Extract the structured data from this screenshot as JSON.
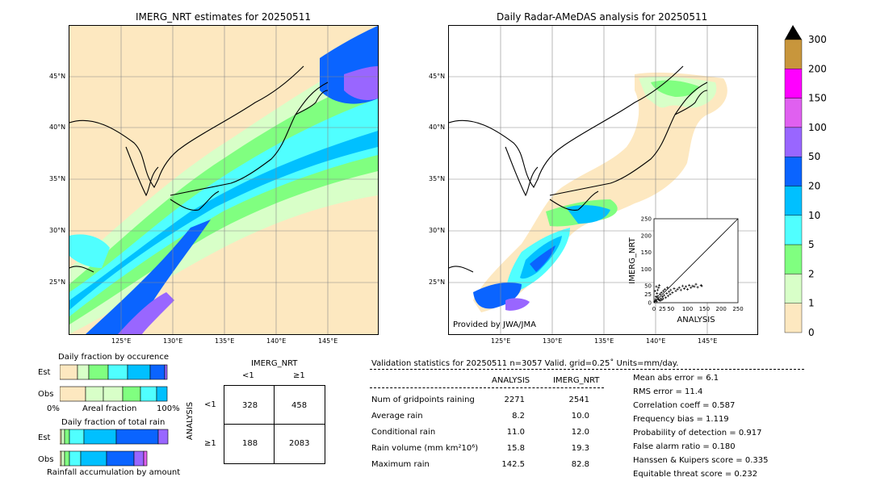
{
  "left_map": {
    "title": "IMERG_NRT estimates for 20250511",
    "lat_labels": [
      "45°N",
      "40°N",
      "35°N",
      "30°N",
      "25°N"
    ],
    "lon_labels": [
      "125°E",
      "130°E",
      "135°E",
      "140°E",
      "145°E"
    ]
  },
  "right_map": {
    "title": "Daily Radar-AMeDAS analysis for 20250511",
    "lat_labels": [
      "45°N",
      "40°N",
      "35°N",
      "30°N",
      "25°N"
    ],
    "lon_labels": [
      "125°E",
      "130°E",
      "135°E",
      "140°E",
      "145°E"
    ],
    "credit": "Provided by JWA/JMA"
  },
  "colorbar": {
    "labels": [
      "300",
      "200",
      "150",
      "100",
      "50",
      "20",
      "10",
      "5",
      "2",
      "1",
      "0"
    ],
    "colors": [
      "#c8963c",
      "#ff00ff",
      "#e060f0",
      "#9966ff",
      "#0a64ff",
      "#00c0ff",
      "#50ffff",
      "#80ff80",
      "#d8ffc8",
      "#fde8c0"
    ]
  },
  "occurrence": {
    "title": "Daily fraction by occurence",
    "row_labels": [
      "Est",
      "Obs"
    ],
    "axis_left": "0%",
    "axis_mid": "Areal fraction",
    "axis_right": "100%"
  },
  "total_rain": {
    "title": "Daily fraction of total rain",
    "row_labels": [
      "Est",
      "Obs"
    ],
    "axis_label": "Rainfall accumulation by amount"
  },
  "contingency": {
    "col_header": "IMERG_NRT",
    "col_labels": [
      "<1",
      "≥1"
    ],
    "row_header": "ANALYSIS",
    "row_labels": [
      "<1",
      "≥1"
    ],
    "cells": [
      [
        "328",
        "458"
      ],
      [
        "188",
        "2083"
      ]
    ]
  },
  "validation": {
    "header": "Validation statistics for 20250511  n=3057 Valid. grid=0.25˚ Units=mm/day.",
    "col_analysis": "ANALYSIS",
    "col_imerg": "IMERG_NRT",
    "rows": [
      {
        "label": "Num of gridpoints raining",
        "analysis": "2271",
        "imerg": "2541"
      },
      {
        "label": "Average rain",
        "analysis": "8.2",
        "imerg": "10.0"
      },
      {
        "label": "Conditional rain",
        "analysis": "11.0",
        "imerg": "12.0"
      },
      {
        "label": "Rain volume (mm km²10⁶)",
        "analysis": "15.8",
        "imerg": "19.3"
      },
      {
        "label": "Maximum rain",
        "analysis": "142.5",
        "imerg": "82.8"
      }
    ],
    "scores": [
      "Mean abs error =    6.1",
      "RMS error =   11.4",
      "Correlation coeff =  0.587",
      "Frequency bias =  1.119",
      "Probability of detection =  0.917",
      "False alarm ratio =  0.180",
      "Hanssen & Kuipers score =  0.335",
      "Equitable threat score =  0.232"
    ]
  },
  "chart_data": {
    "type": "scatter",
    "xlabel": "ANALYSIS",
    "ylabel": "IMERG_NRT",
    "xlim": [
      0,
      250
    ],
    "ylim": [
      0,
      250
    ],
    "x_ticks": [
      "0",
      "25",
      "50",
      "100",
      "150",
      "200",
      "250"
    ],
    "y_ticks": [
      "0",
      "25",
      "50",
      "100",
      "150",
      "200",
      "250"
    ],
    "diagonal": true,
    "points": [
      [
        2,
        3
      ],
      [
        4,
        6
      ],
      [
        5,
        10
      ],
      [
        8,
        4
      ],
      [
        10,
        15
      ],
      [
        12,
        20
      ],
      [
        15,
        8
      ],
      [
        18,
        25
      ],
      [
        20,
        12
      ],
      [
        22,
        30
      ],
      [
        25,
        18
      ],
      [
        28,
        35
      ],
      [
        30,
        22
      ],
      [
        32,
        40
      ],
      [
        35,
        15
      ],
      [
        38,
        28
      ],
      [
        40,
        45
      ],
      [
        42,
        20
      ],
      [
        45,
        33
      ],
      [
        48,
        25
      ],
      [
        50,
        38
      ],
      [
        55,
        30
      ],
      [
        60,
        42
      ],
      [
        65,
        35
      ],
      [
        70,
        40
      ],
      [
        75,
        45
      ],
      [
        80,
        38
      ],
      [
        85,
        50
      ],
      [
        90,
        42
      ],
      [
        95,
        48
      ],
      [
        100,
        40
      ],
      [
        105,
        52
      ],
      [
        110,
        45
      ],
      [
        115,
        50
      ],
      [
        120,
        48
      ],
      [
        125,
        55
      ],
      [
        130,
        46
      ],
      [
        140,
        52
      ],
      [
        142,
        50
      ],
      [
        6,
        18
      ],
      [
        9,
        28
      ],
      [
        11,
        38
      ],
      [
        14,
        45
      ],
      [
        16,
        52
      ],
      [
        3,
        35
      ],
      [
        7,
        48
      ],
      [
        13,
        10
      ],
      [
        19,
        6
      ],
      [
        24,
        9
      ],
      [
        27,
        12
      ]
    ]
  }
}
